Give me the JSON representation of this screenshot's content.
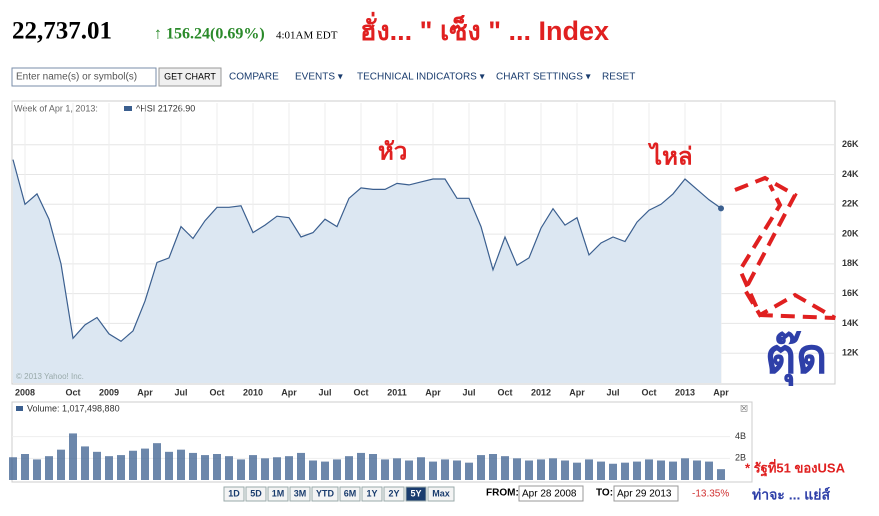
{
  "header": {
    "price": "22,737.01",
    "change": "156.24(0.69%)",
    "time": "4:01AM EDT",
    "title": "ฮั่ง... \" เซ็ง \" ... Index"
  },
  "toolbar": {
    "placeholder": "Enter name(s) or symbol(s)",
    "button": "GET CHART",
    "items": [
      "COMPARE",
      "EVENTS ▾",
      "TECHNICAL INDICATORS ▾",
      "CHART SETTINGS ▾",
      "RESET"
    ]
  },
  "legend": {
    "week": "Week of Apr 1, 2013:",
    "symbol": "^HSI 21726.90",
    "copyright": "© 2013 Yahoo! Inc."
  },
  "annotations": [
    "หัว",
    "ไหล่",
    "ตุ๊ด"
  ],
  "ranges": [
    "1D",
    "5D",
    "1M",
    "3M",
    "YTD",
    "6M",
    "1Y",
    "2Y",
    "5Y",
    "Max"
  ],
  "dates": {
    "from_label": "FROM:",
    "from": "Apr 28 2008",
    "to_label": "TO:",
    "to": "Apr 29 2013",
    "change": "-13.35%"
  },
  "note": [
    "* รัฐที่51 ของUSA",
    "ท่าจะ ... แย่ส์"
  ],
  "chart_data": [
    {
      "type": "line",
      "color": "#3b5f8f",
      "fill": "#dce7f2",
      "categories": [
        null,
        "2008",
        null,
        null,
        null,
        "Oct",
        null,
        null,
        "2009",
        null,
        null,
        "Apr",
        null,
        null,
        "Jul",
        null,
        null,
        "Oct",
        null,
        null,
        "2010",
        null,
        null,
        "Apr",
        null,
        null,
        "Jul",
        null,
        null,
        "Oct",
        null,
        null,
        "2011",
        null,
        null,
        "Apr",
        null,
        null,
        "Jul",
        null,
        null,
        "Oct",
        null,
        null,
        "2012",
        null,
        null,
        "Apr",
        null,
        null,
        "Jul",
        null,
        null,
        "Oct",
        null,
        null,
        "2013",
        null,
        null,
        "Apr"
      ],
      "values": [
        25000,
        22000,
        22700,
        21000,
        18000,
        13000,
        13900,
        14400,
        13300,
        12800,
        13500,
        15500,
        18100,
        18400,
        20500,
        19700,
        20900,
        21800,
        21800,
        21900,
        20100,
        20600,
        21200,
        21100,
        19800,
        20100,
        21000,
        20500,
        22400,
        23100,
        23000,
        23000,
        23400,
        23300,
        23500,
        23700,
        23700,
        22400,
        22400,
        20500,
        17600,
        19800,
        17900,
        18400,
        20400,
        21700,
        20600,
        21100,
        18600,
        19400,
        19800,
        19500,
        20800,
        21600,
        22000,
        22700,
        23700,
        23000,
        22300,
        21726.9
      ],
      "ylim": [
        10000,
        28800
      ],
      "yticks": [
        {
          "value": 12000,
          "label": "12K"
        },
        {
          "value": 14000,
          "label": "14K"
        },
        {
          "value": 16000,
          "label": "16K"
        },
        {
          "value": 18000,
          "label": "18K"
        },
        {
          "value": 20000,
          "label": "20K"
        },
        {
          "value": 22000,
          "label": "22K"
        },
        {
          "value": 24000,
          "label": "24K"
        },
        {
          "value": 26000,
          "label": "26K"
        }
      ],
      "grid": true
    },
    {
      "type": "bar",
      "title": "Volume: 1,017,498,880",
      "color": "#3b5f8f",
      "values": [
        2100000000.0,
        2400000000.0,
        1900000000.0,
        2200000000.0,
        2800000000.0,
        4300000000.0,
        3100000000.0,
        2600000000.0,
        2200000000.0,
        2300000000.0,
        2700000000.0,
        2900000000.0,
        3400000000.0,
        2600000000.0,
        2800000000.0,
        2500000000.0,
        2300000000.0,
        2400000000.0,
        2200000000.0,
        1900000000.0,
        2300000000.0,
        2000000000.0,
        2100000000.0,
        2200000000.0,
        2500000000.0,
        1800000000.0,
        1700000000.0,
        1900000000.0,
        2200000000.0,
        2500000000.0,
        2400000000.0,
        1900000000.0,
        2000000000.0,
        1800000000.0,
        2100000000.0,
        1700000000.0,
        1900000000.0,
        1800000000.0,
        1600000000.0,
        2300000000.0,
        2400000000.0,
        2200000000.0,
        2000000000.0,
        1800000000.0,
        1900000000.0,
        2000000000.0,
        1800000000.0,
        1600000000.0,
        1900000000.0,
        1700000000.0,
        1500000000.0,
        1600000000.0,
        1700000000.0,
        1900000000.0,
        1800000000.0,
        1700000000.0,
        2000000000.0,
        1800000000.0,
        1700000000.0,
        1000000000.0
      ],
      "ylim": [
        0,
        6000000000
      ],
      "yticks": [
        {
          "value": 2000000000,
          "label": "2B"
        },
        {
          "value": 4000000000,
          "label": "4B"
        }
      ]
    }
  ]
}
